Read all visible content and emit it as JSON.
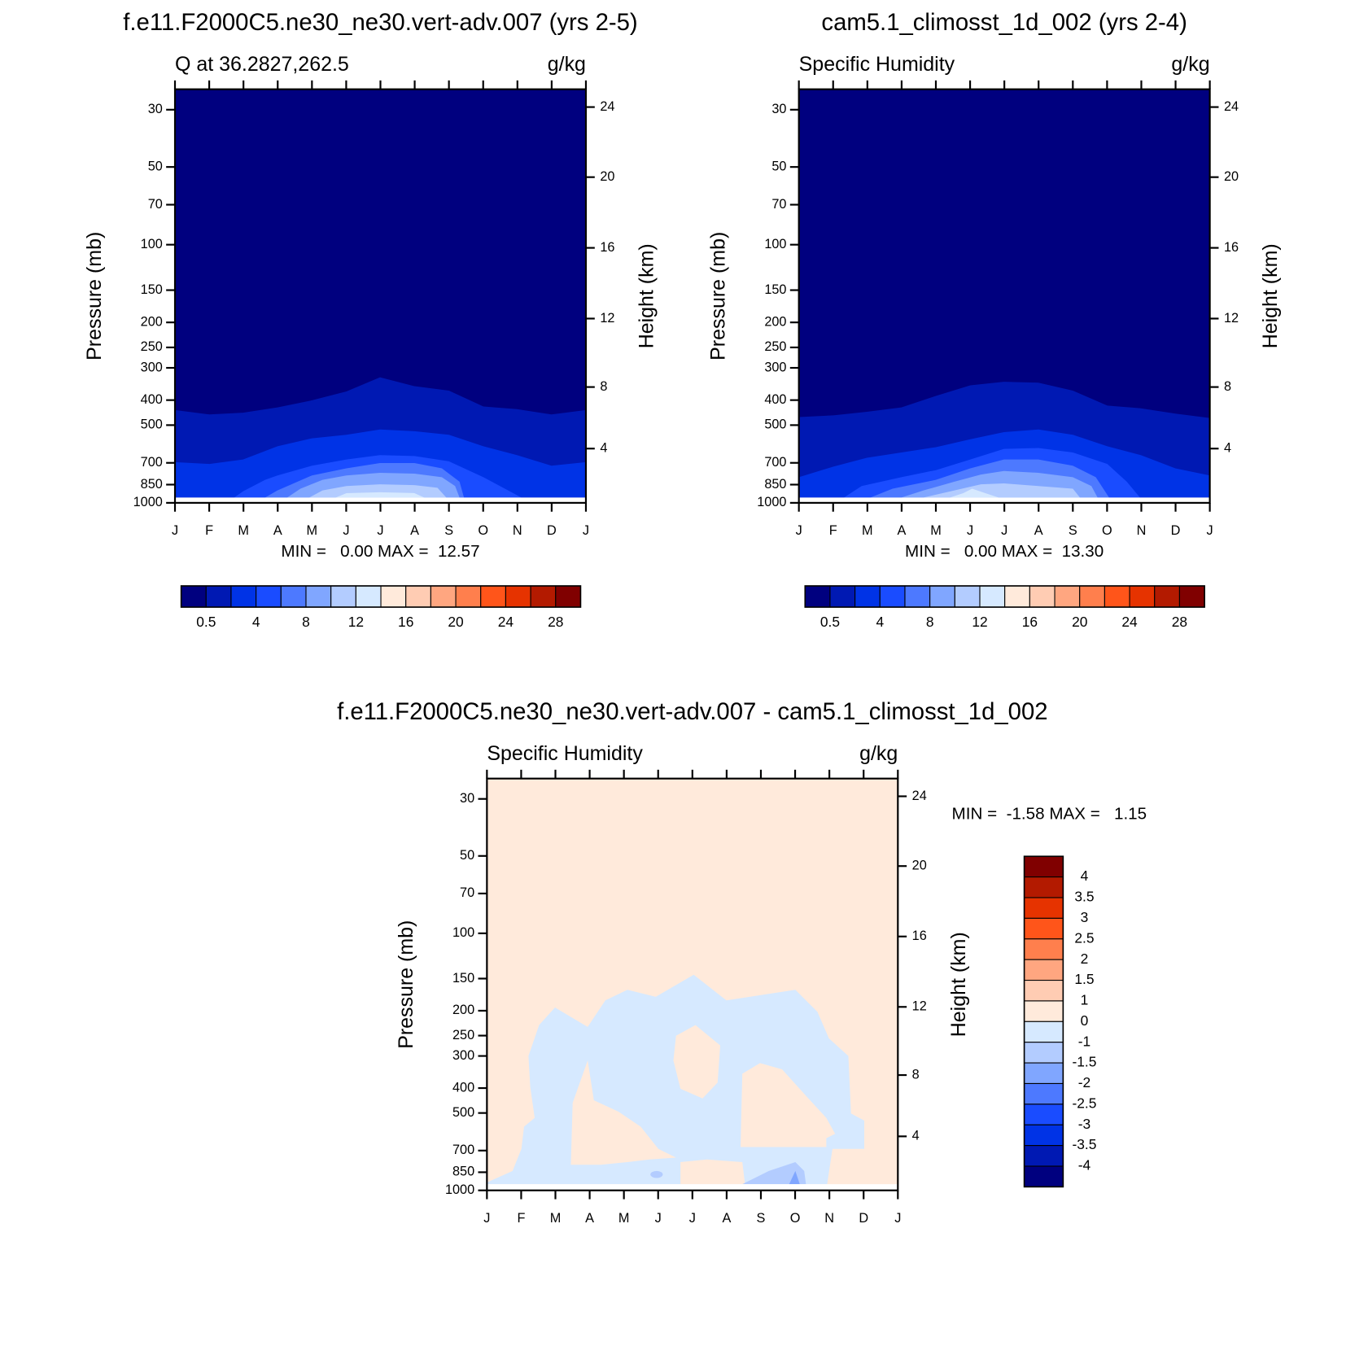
{
  "chart_data": [
    {
      "type": "contour",
      "title": "f.e11.F2000C5.ne30_ne30.vert-adv.007 (yrs 2-5)",
      "subtitle_left": "Q at 36.2827,262.5",
      "subtitle_right": "g/kg",
      "ylabel": "Pressure (mb)",
      "y2label": "Height (km)",
      "categories": [
        "J",
        "F",
        "M",
        "A",
        "M",
        "J",
        "J",
        "A",
        "S",
        "O",
        "N",
        "D",
        "J"
      ],
      "ylim": [
        1000,
        25
      ],
      "yscale": "log",
      "yticks": [
        30,
        50,
        70,
        100,
        150,
        200,
        250,
        300,
        400,
        500,
        700,
        850,
        1000
      ],
      "y2ticks": [
        4,
        8,
        12,
        16,
        20,
        24
      ],
      "stats": "MIN =   0.00 MAX =  12.57",
      "colorbar": {
        "orientation": "horizontal",
        "colors": [
          "#00007f",
          "#0019b3",
          "#0033e6",
          "#1a4cff",
          "#4d79ff",
          "#80a6ff",
          "#b3ccff",
          "#d6e9ff",
          "#ffeadb",
          "#ffccb3",
          "#ffa680",
          "#ff7f4d",
          "#ff551a",
          "#e63300",
          "#b31a00",
          "#800000"
        ],
        "labels": [
          0.5,
          4,
          8,
          12,
          16,
          20,
          24,
          28
        ]
      }
    },
    {
      "type": "contour",
      "title": "cam5.1_climosst_1d_002 (yrs 2-4)",
      "subtitle_left": "Specific Humidity",
      "subtitle_right": "g/kg",
      "ylabel": "Pressure (mb)",
      "y2label": "Height (km)",
      "categories": [
        "J",
        "F",
        "M",
        "A",
        "M",
        "J",
        "J",
        "A",
        "S",
        "O",
        "N",
        "D",
        "J"
      ],
      "ylim": [
        1000,
        25
      ],
      "yscale": "log",
      "yticks": [
        30,
        50,
        70,
        100,
        150,
        200,
        250,
        300,
        400,
        500,
        700,
        850,
        1000
      ],
      "y2ticks": [
        4,
        8,
        12,
        16,
        20,
        24
      ],
      "stats": "MIN =   0.00 MAX =  13.30",
      "colorbar": {
        "orientation": "horizontal",
        "colors": [
          "#00007f",
          "#0019b3",
          "#0033e6",
          "#1a4cff",
          "#4d79ff",
          "#80a6ff",
          "#b3ccff",
          "#d6e9ff",
          "#ffeadb",
          "#ffccb3",
          "#ffa680",
          "#ff7f4d",
          "#ff551a",
          "#e63300",
          "#b31a00",
          "#800000"
        ],
        "labels": [
          0.5,
          4,
          8,
          12,
          16,
          20,
          24,
          28
        ]
      }
    },
    {
      "type": "contour",
      "title": "f.e11.F2000C5.ne30_ne30.vert-adv.007 - cam5.1_climosst_1d_002",
      "subtitle_left": "Specific Humidity",
      "subtitle_right": "g/kg",
      "ylabel": "Pressure (mb)",
      "y2label": "Height (km)",
      "categories": [
        "J",
        "F",
        "M",
        "A",
        "M",
        "J",
        "J",
        "A",
        "S",
        "O",
        "N",
        "D",
        "J"
      ],
      "ylim": [
        1000,
        25
      ],
      "yscale": "log",
      "yticks": [
        30,
        50,
        70,
        100,
        150,
        200,
        250,
        300,
        400,
        500,
        700,
        850,
        1000
      ],
      "y2ticks": [
        4,
        8,
        12,
        16,
        20,
        24
      ],
      "stats": "MIN =  -1.58 MAX =   1.15",
      "colorbar": {
        "orientation": "vertical",
        "colors": [
          "#800000",
          "#b31a00",
          "#e63300",
          "#ff551a",
          "#ff7f4d",
          "#ffa680",
          "#ffccb3",
          "#ffeadb",
          "#d6e9ff",
          "#b3ccff",
          "#80a6ff",
          "#4d79ff",
          "#1a4cff",
          "#0033e6",
          "#0019b3",
          "#00007f"
        ],
        "labels": [
          4,
          3.5,
          3,
          2.5,
          2,
          1.5,
          1,
          0,
          -1,
          -1.5,
          -2,
          -2.5,
          -3,
          -3.5,
          -4
        ]
      }
    }
  ]
}
